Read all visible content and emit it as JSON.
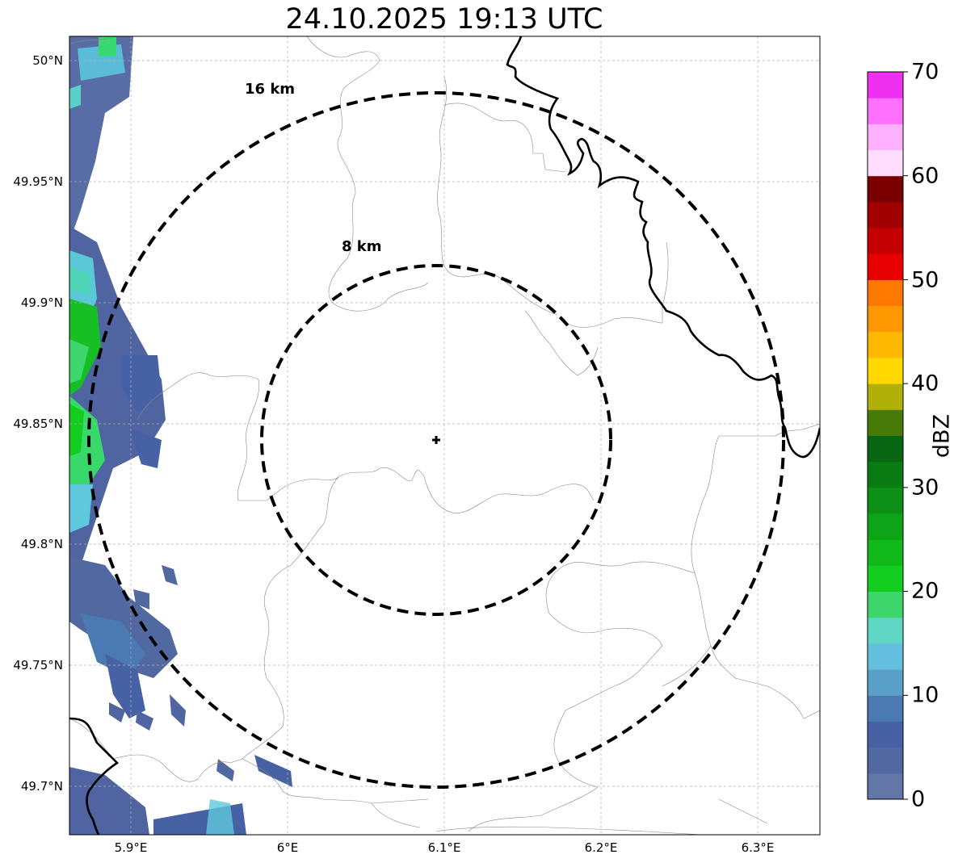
{
  "title": "24.10.2025 19:13 UTC",
  "x_ticks": [
    "5.9°E",
    "6°E",
    "6.1°E",
    "6.2°E",
    "6.3°E"
  ],
  "y_ticks": [
    "50°N",
    "49.95°N",
    "49.9°N",
    "49.85°N",
    "49.8°N",
    "49.75°N",
    "49.7°N"
  ],
  "colorbar": {
    "label": "dBZ",
    "ticks": [
      "0",
      "10",
      "20",
      "30",
      "40",
      "50",
      "60",
      "70"
    ],
    "range": [
      0,
      70
    ],
    "colors": [
      "#6277a8",
      "#5268a0",
      "#4662a4",
      "#4b7ab2",
      "#58a0c8",
      "#64bfde",
      "#5fd6c4",
      "#3cd66c",
      "#12cc1e",
      "#10b81a",
      "#0ea418",
      "#0c9016",
      "#0a7c14",
      "#086612",
      "#487a0a",
      "#b0b008",
      "#ffd800",
      "#ffb800",
      "#ff9800",
      "#ff7800",
      "#e80000",
      "#c40000",
      "#a00000",
      "#7a0000",
      "#ffddff",
      "#ffb0ff",
      "#ff70ff",
      "#f030f0"
    ]
  },
  "rings": [
    {
      "label": "8 km",
      "radius_km": 8
    },
    {
      "label": "16 km",
      "radius_km": 16
    }
  ],
  "radar_center": {
    "lon": 6.096,
    "lat": 49.843
  },
  "extent": {
    "lon": [
      5.859,
      6.339
    ],
    "lat": [
      49.68,
      50.01
    ]
  },
  "colors": {
    "echo_main": "#4f64a0",
    "echo_light": "#5a72aa",
    "echo_cyan": "#60c8dc",
    "echo_green": "#22c832"
  }
}
